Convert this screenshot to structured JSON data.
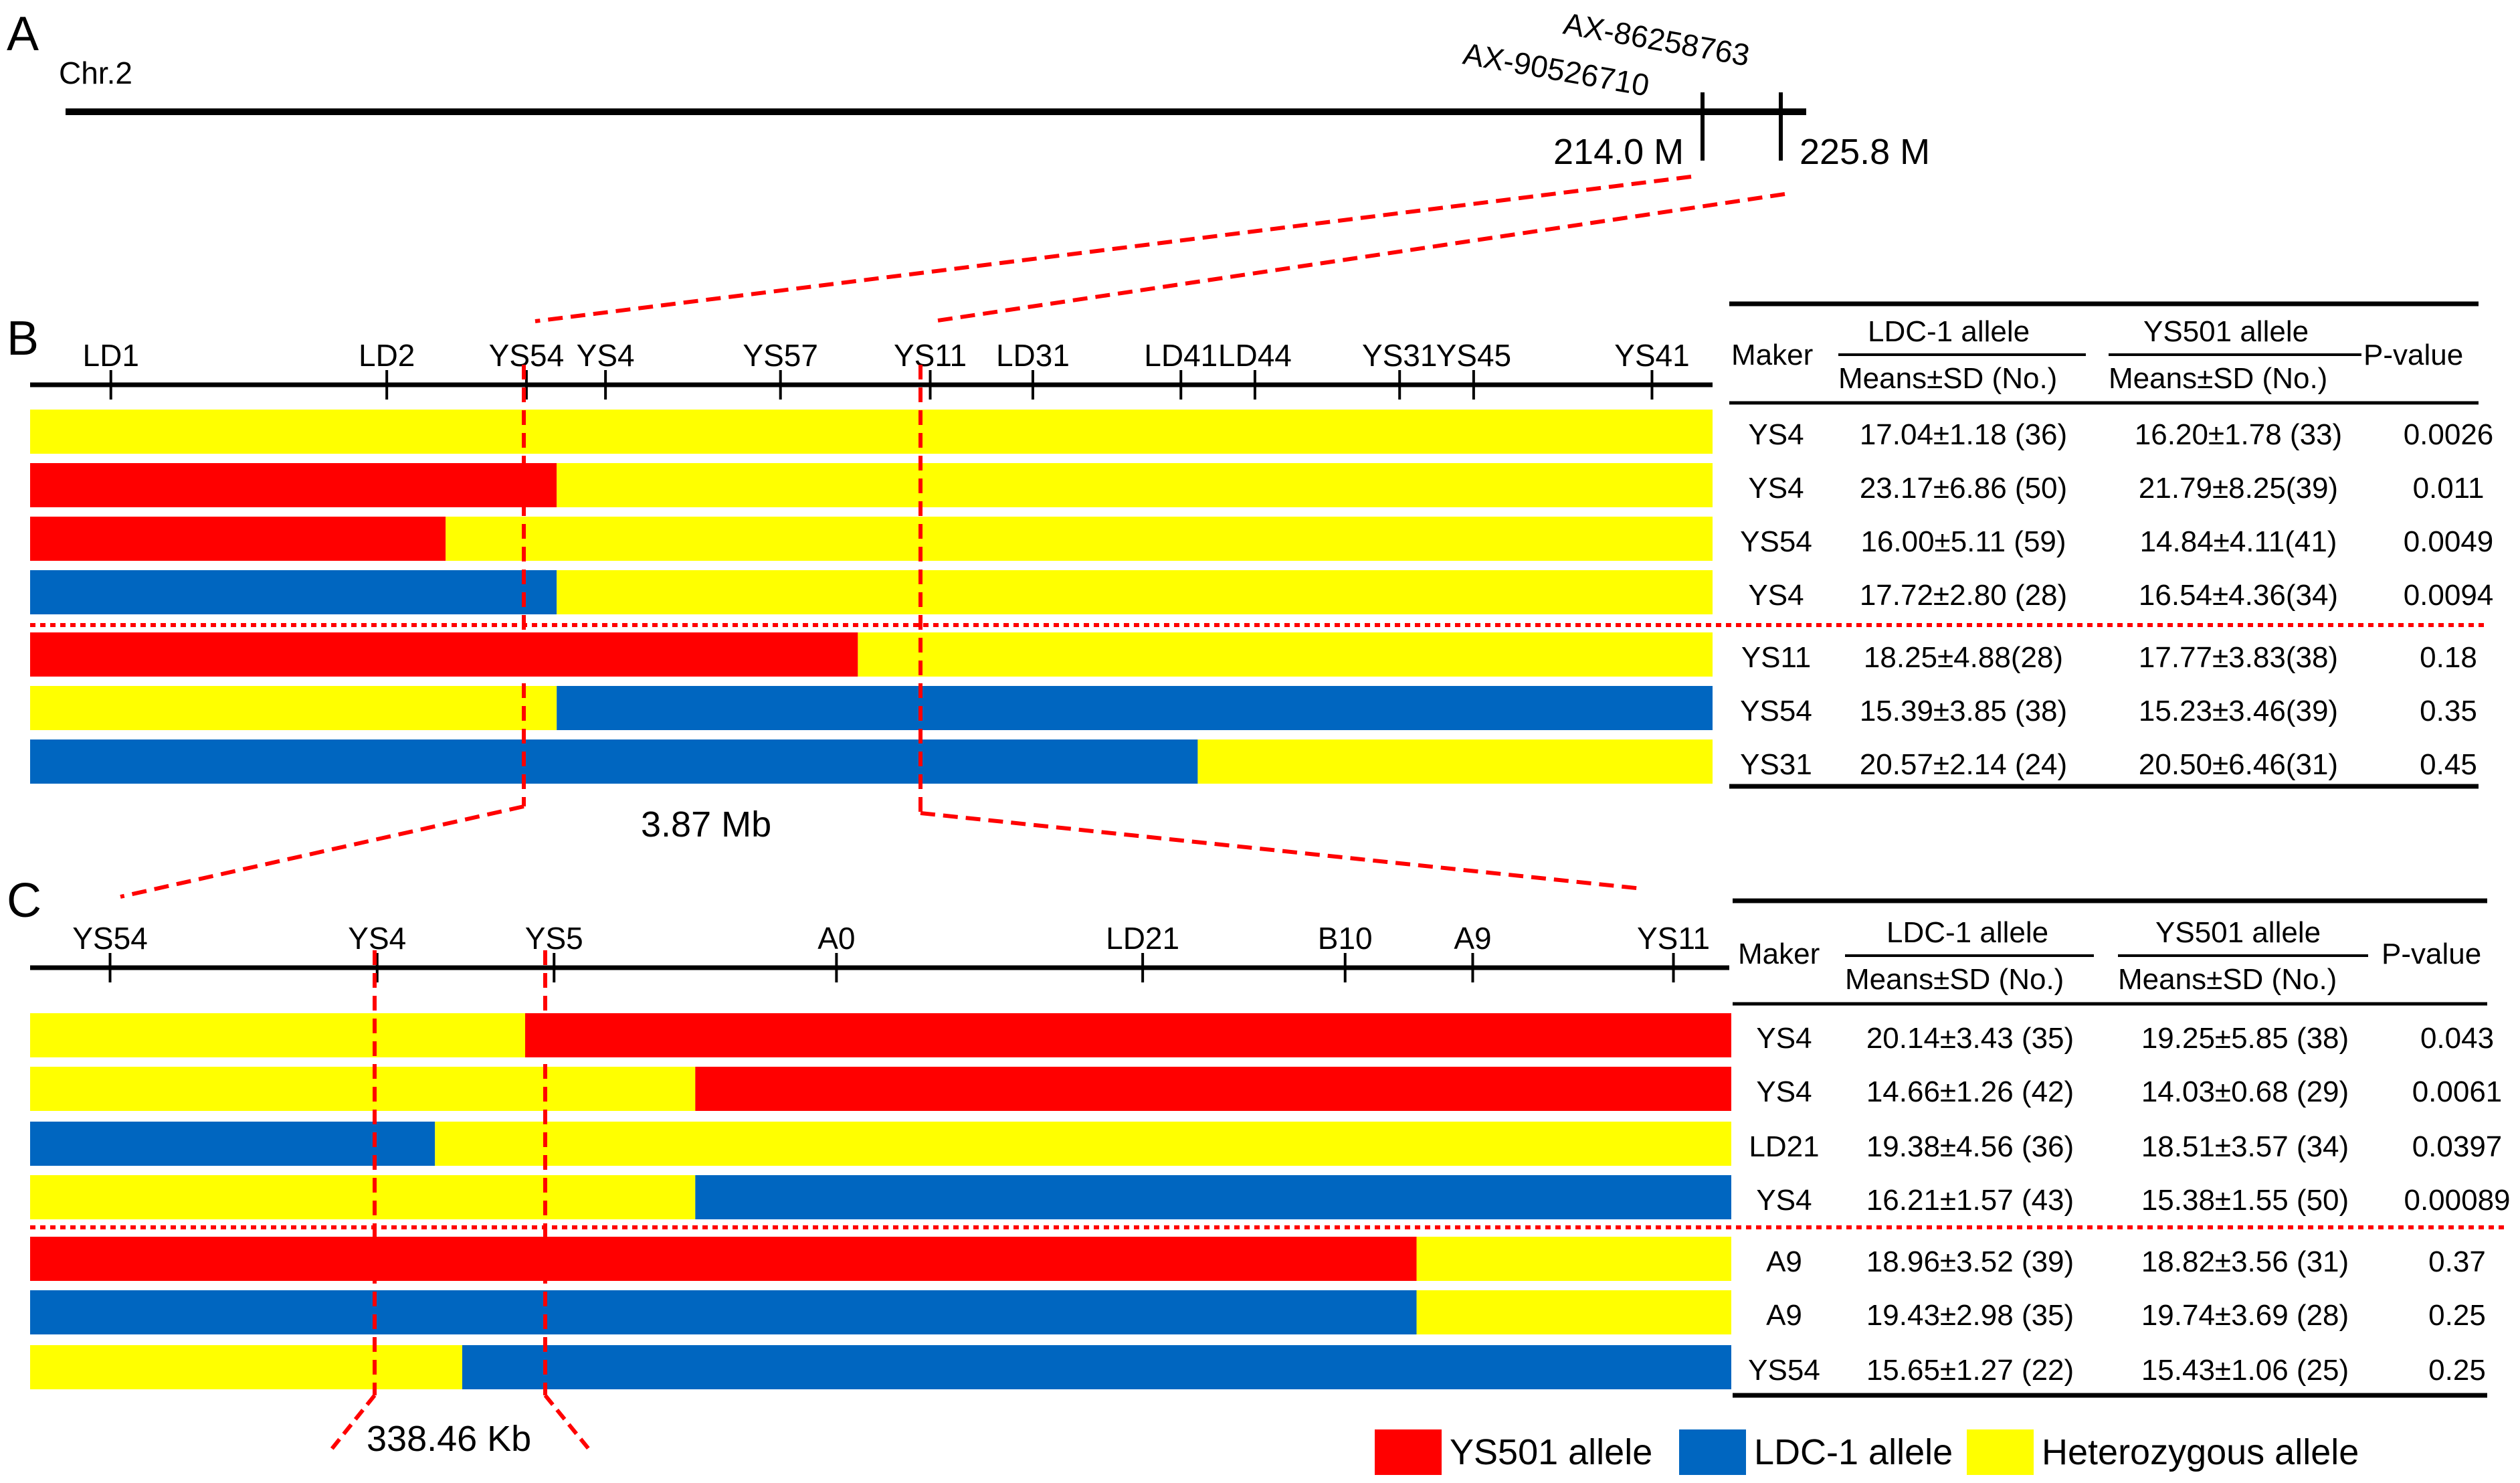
{
  "colors": {
    "ys501": "#ff0000",
    "ldc1": "#0066c0",
    "het": "#ffff00",
    "guide": "#ff0000",
    "line": "#000000"
  },
  "panelA": {
    "letter": "A",
    "chrom": "Chr.2",
    "marker1": "AX-90526710",
    "marker2": "AX-86258763",
    "pos1": "214.0 M",
    "pos2": "225.8 M"
  },
  "panelB": {
    "letter": "B",
    "scale": {
      "start": 0,
      "end": 100
    },
    "markers": [
      {
        "name": "LD1",
        "pos": 4.8
      },
      {
        "name": "LD2",
        "pos": 21.2
      },
      {
        "name": "YS54",
        "pos": 29.5
      },
      {
        "name": "YS4",
        "pos": 34.2
      },
      {
        "name": "YS57",
        "pos": 44.6
      },
      {
        "name": "YS11",
        "pos": 53.5
      },
      {
        "name": "LD31",
        "pos": 59.6
      },
      {
        "name": "LD41",
        "pos": 68.4
      },
      {
        "name": "LD44",
        "pos": 72.8
      },
      {
        "name": "YS31",
        "pos": 81.4
      },
      {
        "name": "YS45",
        "pos": 85.8
      },
      {
        "name": "YS41",
        "pos": 96.4
      }
    ],
    "size_label": "3.87 Mb",
    "bars": [
      [
        {
          "allele": "het",
          "from": 0,
          "to": 100
        }
      ],
      [
        {
          "allele": "ys501",
          "from": 0,
          "to": 31.3
        },
        {
          "allele": "het",
          "from": 31.3,
          "to": 100
        }
      ],
      [
        {
          "allele": "ys501",
          "from": 0,
          "to": 24.7
        },
        {
          "allele": "het",
          "from": 24.7,
          "to": 100
        }
      ],
      [
        {
          "allele": "ldc1",
          "from": 0,
          "to": 31.3
        },
        {
          "allele": "het",
          "from": 31.3,
          "to": 100
        }
      ],
      [
        {
          "allele": "ys501",
          "from": 0,
          "to": 49.2
        },
        {
          "allele": "het",
          "from": 49.2,
          "to": 100
        }
      ],
      [
        {
          "allele": "het",
          "from": 0,
          "to": 31.3
        },
        {
          "allele": "ldc1",
          "from": 31.3,
          "to": 100
        }
      ],
      [
        {
          "allele": "ldc1",
          "from": 0,
          "to": 69.4
        },
        {
          "allele": "het",
          "from": 69.4,
          "to": 100
        }
      ]
    ],
    "table": {
      "headers": {
        "maker": "Maker",
        "ldc": "LDC-1 allele",
        "ys": "YS501 allele",
        "sub": "Means±SD (No.)",
        "p": "P-value"
      },
      "rows": [
        {
          "maker": "YS4",
          "ldc": "17.04±1.18 (36)",
          "ys": "16.20±1.78 (33)",
          "p": "0.0026"
        },
        {
          "maker": "YS4",
          "ldc": "23.17±6.86 (50)",
          "ys": "21.79±8.25(39)",
          "p": "0.011"
        },
        {
          "maker": "YS54",
          "ldc": "16.00±5.11 (59)",
          "ys": "14.84±4.11(41)",
          "p": "0.0049"
        },
        {
          "maker": "YS4",
          "ldc": "17.72±2.80 (28)",
          "ys": "16.54±4.36(34)",
          "p": "0.0094"
        },
        {
          "maker": "YS11",
          "ldc": "18.25±4.88(28)",
          "ys": "17.77±3.83(38)",
          "p": "0.18"
        },
        {
          "maker": "YS54",
          "ldc": "15.39±3.85 (38)",
          "ys": "15.23±3.46(39)",
          "p": "0.35"
        },
        {
          "maker": "YS31",
          "ldc": "20.57±2.14 (24)",
          "ys": "20.50±6.46(31)",
          "p": "0.45"
        }
      ]
    }
  },
  "panelC": {
    "letter": "C",
    "scale": {
      "start": 0,
      "end": 100
    },
    "markers": [
      {
        "name": "YS54",
        "pos": 4.7
      },
      {
        "name": "YS4",
        "pos": 20.4
      },
      {
        "name": "YS5",
        "pos": 30.8
      },
      {
        "name": "A0",
        "pos": 47.4
      },
      {
        "name": "LD21",
        "pos": 65.4
      },
      {
        "name": "B10",
        "pos": 77.3
      },
      {
        "name": "A9",
        "pos": 84.8
      },
      {
        "name": "YS11",
        "pos": 96.6
      }
    ],
    "size_label": "338.46 Kb",
    "bars": [
      [
        {
          "allele": "het",
          "from": 0,
          "to": 29.1
        },
        {
          "allele": "ys501",
          "from": 29.1,
          "to": 100
        }
      ],
      [
        {
          "allele": "het",
          "from": 0,
          "to": 39.1
        },
        {
          "allele": "ys501",
          "from": 39.1,
          "to": 100
        }
      ],
      [
        {
          "allele": "ldc1",
          "from": 0,
          "to": 23.8
        },
        {
          "allele": "het",
          "from": 23.8,
          "to": 100
        }
      ],
      [
        {
          "allele": "het",
          "from": 0,
          "to": 39.1
        },
        {
          "allele": "ldc1",
          "from": 39.1,
          "to": 100
        }
      ],
      [
        {
          "allele": "ys501",
          "from": 0,
          "to": 81.5
        },
        {
          "allele": "het",
          "from": 81.5,
          "to": 100
        }
      ],
      [
        {
          "allele": "ldc1",
          "from": 0,
          "to": 81.5
        },
        {
          "allele": "het",
          "from": 81.5,
          "to": 100
        }
      ],
      [
        {
          "allele": "het",
          "from": 0,
          "to": 25.4
        },
        {
          "allele": "ldc1",
          "from": 25.4,
          "to": 100
        }
      ]
    ],
    "table": {
      "headers": {
        "maker": "Maker",
        "ldc": "LDC-1 allele",
        "ys": "YS501 allele",
        "sub": "Means±SD (No.)",
        "p": "P-value"
      },
      "rows": [
        {
          "maker": "YS4",
          "ldc": "20.14±3.43 (35)",
          "ys": "19.25±5.85 (38)",
          "p": "0.043"
        },
        {
          "maker": "YS4",
          "ldc": "14.66±1.26 (42)",
          "ys": "14.03±0.68 (29)",
          "p": "0.0061"
        },
        {
          "maker": "LD21",
          "ldc": "19.38±4.56 (36)",
          "ys": "18.51±3.57 (34)",
          "p": "0.0397"
        },
        {
          "maker": "YS4",
          "ldc": "16.21±1.57 (43)",
          "ys": "15.38±1.55 (50)",
          "p": "0.00089"
        },
        {
          "maker": "A9",
          "ldc": "18.96±3.52 (39)",
          "ys": "18.82±3.56 (31)",
          "p": "0.37"
        },
        {
          "maker": "A9",
          "ldc": "19.43±2.98 (35)",
          "ys": "19.74±3.69 (28)",
          "p": "0.25"
        },
        {
          "maker": "YS54",
          "ldc": "15.65±1.27 (22)",
          "ys": "15.43±1.06 (25)",
          "p": "0.25"
        }
      ]
    }
  },
  "legend": [
    {
      "allele": "ys501",
      "label": "YS501 allele"
    },
    {
      "allele": "ldc1",
      "label": "LDC-1 allele"
    },
    {
      "allele": "het",
      "label": "Heterozygous allele"
    }
  ]
}
